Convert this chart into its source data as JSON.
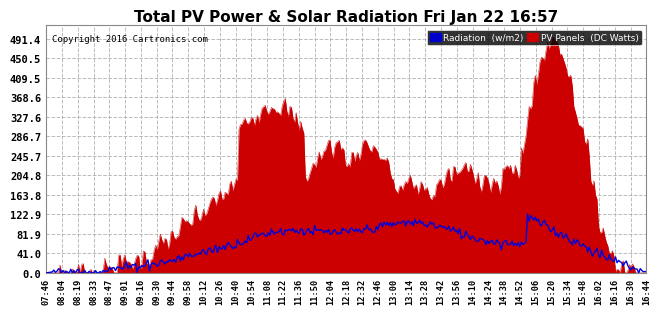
{
  "title": "Total PV Power & Solar Radiation Fri Jan 22 16:57",
  "copyright": "Copyright 2016 Cartronics.com",
  "legend_labels": [
    "Radiation  (w/m2)",
    "PV Panels  (DC Watts)"
  ],
  "legend_colors": [
    "#0000cc",
    "#cc0000"
  ],
  "yticks": [
    0.0,
    41.0,
    81.9,
    122.9,
    163.8,
    204.8,
    245.7,
    286.7,
    327.6,
    368.6,
    409.5,
    450.5,
    491.4
  ],
  "ymax": 520,
  "background_color": "#ffffff",
  "grid_color": "#aaaaaa",
  "fill_color": "#cc0000",
  "line_color": "#0000dd",
  "title_fontsize": 11,
  "x_labels": [
    "07:46",
    "08:04",
    "08:19",
    "08:33",
    "08:47",
    "09:01",
    "09:16",
    "09:30",
    "09:44",
    "09:58",
    "10:12",
    "10:26",
    "10:40",
    "10:54",
    "11:08",
    "11:22",
    "11:36",
    "11:50",
    "12:04",
    "12:18",
    "12:32",
    "12:46",
    "13:00",
    "13:14",
    "13:28",
    "13:42",
    "13:56",
    "14:10",
    "14:24",
    "14:38",
    "14:52",
    "15:06",
    "15:20",
    "15:34",
    "15:48",
    "16:02",
    "16:16",
    "16:30",
    "16:44"
  ]
}
